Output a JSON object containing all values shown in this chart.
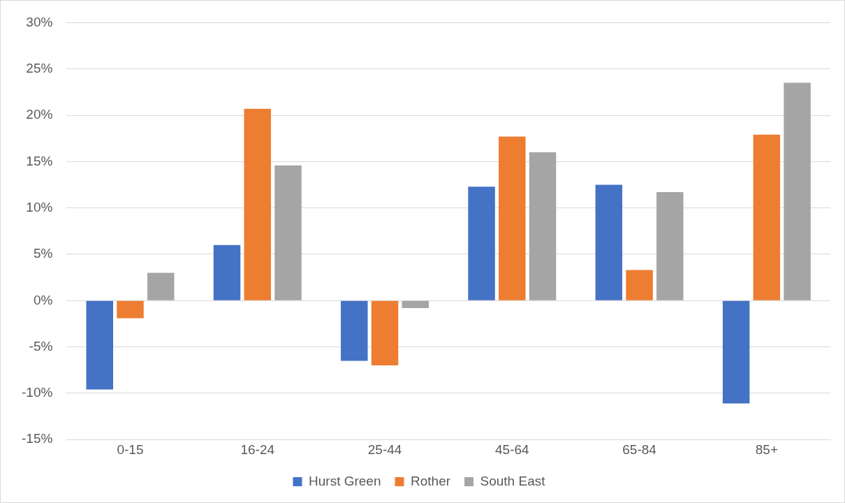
{
  "chart_data": {
    "type": "bar",
    "categories": [
      "0-15",
      "16-24",
      "25-44",
      "45-64",
      "65-84",
      "85+"
    ],
    "series": [
      {
        "name": "Hurst Green",
        "color": "#4472c4",
        "values": [
          -9.6,
          6.0,
          -6.5,
          12.3,
          12.5,
          -11.1
        ]
      },
      {
        "name": "Rother",
        "color": "#ed7d31",
        "values": [
          -1.9,
          20.7,
          -7.0,
          17.7,
          3.3,
          17.9
        ]
      },
      {
        "name": "South East",
        "color": "#a5a5a5",
        "values": [
          3.0,
          14.6,
          -0.8,
          16.0,
          11.7,
          23.5
        ]
      }
    ],
    "ylim": [
      -15,
      30
    ],
    "yticks": [
      {
        "value": -15,
        "label": "-15%"
      },
      {
        "value": -10,
        "label": "-10%"
      },
      {
        "value": -5,
        "label": "-5%"
      },
      {
        "value": 0,
        "label": "0%"
      },
      {
        "value": 5,
        "label": "5%"
      },
      {
        "value": 10,
        "label": "10%"
      },
      {
        "value": 15,
        "label": "15%"
      },
      {
        "value": 20,
        "label": "20%"
      },
      {
        "value": 25,
        "label": "25%"
      },
      {
        "value": 30,
        "label": "30%"
      }
    ],
    "grid": "y",
    "legend": "bottom"
  }
}
